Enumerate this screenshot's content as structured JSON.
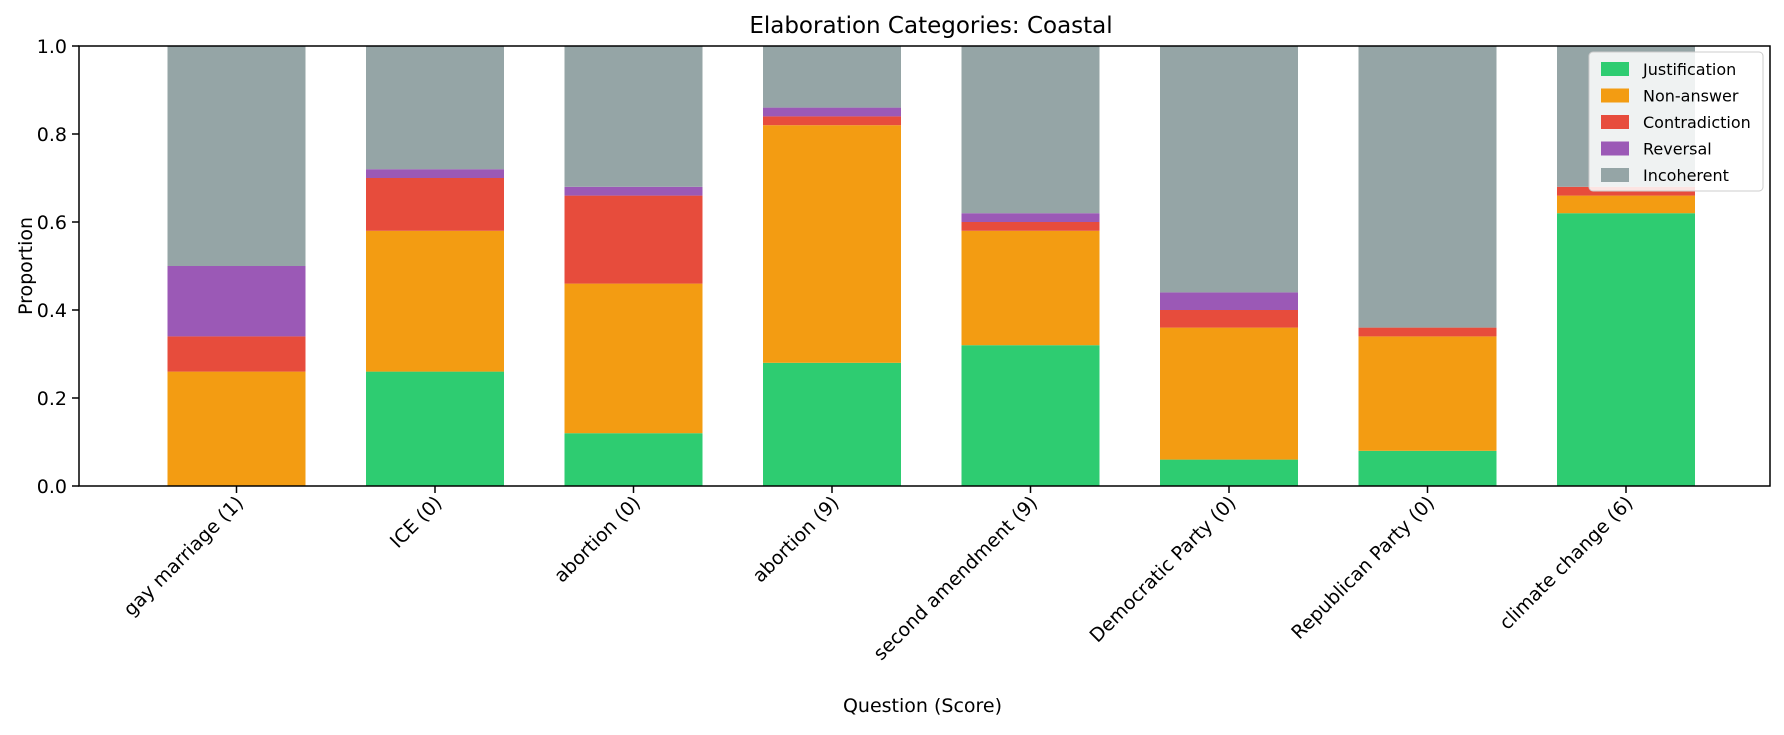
{
  "chart_data": {
    "type": "bar",
    "stacked": true,
    "title": "Elaboration Categories: Coastal",
    "xlabel": "Question (Score)",
    "ylabel": "Proportion",
    "ylim": [
      0,
      1.0
    ],
    "yticks": [
      "0.0",
      "0.2",
      "0.4",
      "0.6",
      "0.8",
      "1.0"
    ],
    "categories": [
      "gay marriage (1)",
      "ICE (0)",
      "abortion (0)",
      "abortion (9)",
      "second amendment (9)",
      "Democratic Party (0)",
      "Republican Party (0)",
      "climate change (6)"
    ],
    "series": [
      {
        "name": "Justification",
        "color": "#2ecc71",
        "values": [
          0.0,
          0.26,
          0.12,
          0.28,
          0.32,
          0.06,
          0.08,
          0.62
        ]
      },
      {
        "name": "Non-answer",
        "color": "#f39c12",
        "values": [
          0.26,
          0.32,
          0.34,
          0.54,
          0.26,
          0.3,
          0.26,
          0.04
        ]
      },
      {
        "name": "Contradiction",
        "color": "#e74c3c",
        "values": [
          0.08,
          0.12,
          0.2,
          0.02,
          0.02,
          0.04,
          0.02,
          0.02
        ]
      },
      {
        "name": "Reversal",
        "color": "#9b59b6",
        "values": [
          0.16,
          0.02,
          0.02,
          0.02,
          0.02,
          0.04,
          0.0,
          0.0
        ]
      },
      {
        "name": "Incoherent",
        "color": "#95a5a6",
        "values": [
          0.5,
          0.28,
          0.32,
          0.14,
          0.38,
          0.56,
          0.64,
          0.32
        ]
      }
    ],
    "legend_position": "top-right",
    "grid": false
  }
}
